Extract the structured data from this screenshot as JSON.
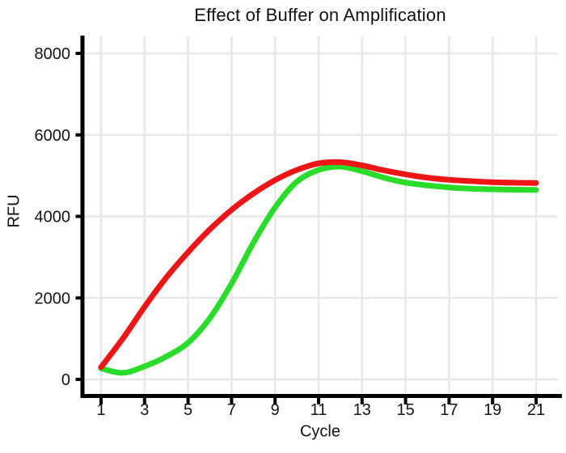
{
  "chart_data": {
    "type": "line",
    "title": "Effect of Buffer on Amplification",
    "xlabel": "Cycle",
    "ylabel": "RFU",
    "x": [
      1,
      2,
      3,
      4,
      5,
      6,
      7,
      8,
      9,
      10,
      11,
      12,
      13,
      14,
      15,
      16,
      17,
      18,
      19,
      20,
      21
    ],
    "xticks": [
      1,
      3,
      5,
      7,
      9,
      11,
      13,
      15,
      17,
      19,
      21
    ],
    "yticks": [
      0,
      2000,
      4000,
      6000,
      8000
    ],
    "xlim": [
      0,
      22
    ],
    "ylim": [
      0,
      8400
    ],
    "grid": true,
    "legend_position": "none",
    "series": [
      {
        "name": "red",
        "color": "#ed1515",
        "values": [
          300,
          1000,
          1780,
          2500,
          3120,
          3680,
          4160,
          4560,
          4890,
          5140,
          5300,
          5330,
          5250,
          5130,
          5030,
          4950,
          4900,
          4865,
          4840,
          4825,
          4820
        ]
      },
      {
        "name": "green",
        "color": "#2adc2a",
        "values": [
          270,
          160,
          320,
          560,
          900,
          1500,
          2350,
          3350,
          4220,
          4850,
          5140,
          5220,
          5110,
          4950,
          4830,
          4760,
          4710,
          4680,
          4665,
          4655,
          4650
        ]
      }
    ]
  },
  "style": {
    "grid_color": "#e8e8e8",
    "axis_color": "#000000",
    "text_color": "#141414",
    "background": "#ffffff"
  }
}
